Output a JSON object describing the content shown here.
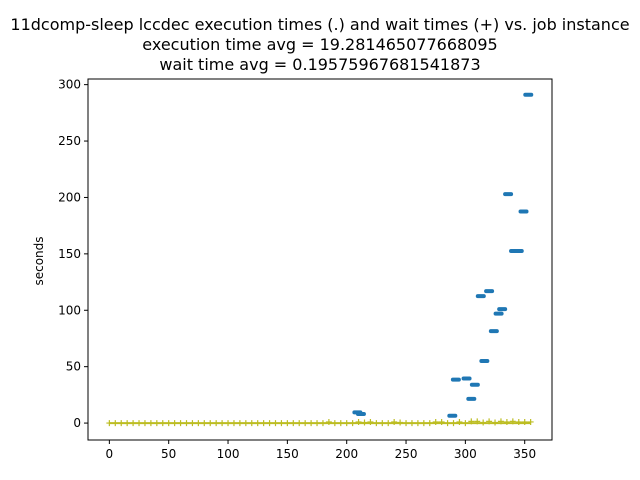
{
  "chart_data": {
    "type": "scatter",
    "title_lines": [
      "11dcomp-sleep lccdec execution times (.) and wait times (+) vs. job instance",
      "execution time avg = 19.281465077668095",
      "wait time avg = 0.19575967681541873"
    ],
    "xlabel": "",
    "ylabel": "seconds",
    "xlim": [
      -18,
      373
    ],
    "ylim": [
      -15,
      305
    ],
    "xticks": [
      0,
      50,
      100,
      150,
      200,
      250,
      300,
      350
    ],
    "yticks": [
      0,
      50,
      100,
      150,
      200,
      250,
      300
    ],
    "grid": false,
    "series": [
      {
        "marker": ".",
        "color": "#1f77b4",
        "points": [
          [
            209,
            9.5
          ],
          [
            212,
            8
          ],
          [
            289,
            6.5
          ],
          [
            292,
            38.5
          ],
          [
            301,
            39.5
          ],
          [
            305,
            21.5
          ],
          [
            308,
            34
          ],
          [
            313,
            112.5
          ],
          [
            316,
            55
          ],
          [
            320,
            117
          ],
          [
            324,
            81.5
          ],
          [
            328,
            97
          ],
          [
            331,
            101
          ],
          [
            336,
            203
          ],
          [
            341,
            152.5
          ],
          [
            345,
            152.5
          ],
          [
            349,
            187.5
          ],
          [
            353,
            291
          ]
        ]
      },
      {
        "marker": "+",
        "color": "#bcbd22",
        "points": [
          [
            0,
            0
          ],
          [
            5,
            0
          ],
          [
            10,
            0
          ],
          [
            15,
            0
          ],
          [
            20,
            0
          ],
          [
            25,
            0
          ],
          [
            30,
            0
          ],
          [
            35,
            0
          ],
          [
            40,
            0
          ],
          [
            45,
            0
          ],
          [
            50,
            0
          ],
          [
            55,
            0
          ],
          [
            60,
            0
          ],
          [
            65,
            0
          ],
          [
            70,
            0
          ],
          [
            75,
            0
          ],
          [
            80,
            0
          ],
          [
            85,
            0
          ],
          [
            90,
            0
          ],
          [
            95,
            0
          ],
          [
            100,
            0
          ],
          [
            105,
            0
          ],
          [
            110,
            0
          ],
          [
            115,
            0
          ],
          [
            120,
            0
          ],
          [
            125,
            0
          ],
          [
            130,
            0
          ],
          [
            135,
            0
          ],
          [
            140,
            0
          ],
          [
            145,
            0
          ],
          [
            150,
            0
          ],
          [
            155,
            0
          ],
          [
            160,
            0
          ],
          [
            165,
            0
          ],
          [
            170,
            0
          ],
          [
            175,
            0
          ],
          [
            180,
            0
          ],
          [
            185,
            1
          ],
          [
            190,
            0
          ],
          [
            195,
            0
          ],
          [
            200,
            0
          ],
          [
            205,
            0
          ],
          [
            210,
            1
          ],
          [
            215,
            0.5
          ],
          [
            220,
            1
          ],
          [
            225,
            0
          ],
          [
            230,
            0
          ],
          [
            235,
            0
          ],
          [
            240,
            1
          ],
          [
            245,
            0.5
          ],
          [
            250,
            0
          ],
          [
            255,
            0
          ],
          [
            260,
            0
          ],
          [
            265,
            0
          ],
          [
            270,
            0
          ],
          [
            275,
            1
          ],
          [
            280,
            1
          ],
          [
            285,
            0
          ],
          [
            290,
            0
          ],
          [
            295,
            1
          ],
          [
            300,
            0
          ],
          [
            305,
            1.5
          ],
          [
            310,
            1.5
          ],
          [
            315,
            0.5
          ],
          [
            320,
            1.5
          ],
          [
            325,
            0.5
          ],
          [
            330,
            1.5
          ],
          [
            335,
            1
          ],
          [
            340,
            1.5
          ],
          [
            345,
            1
          ],
          [
            350,
            1
          ],
          [
            355,
            1
          ]
        ]
      }
    ]
  }
}
